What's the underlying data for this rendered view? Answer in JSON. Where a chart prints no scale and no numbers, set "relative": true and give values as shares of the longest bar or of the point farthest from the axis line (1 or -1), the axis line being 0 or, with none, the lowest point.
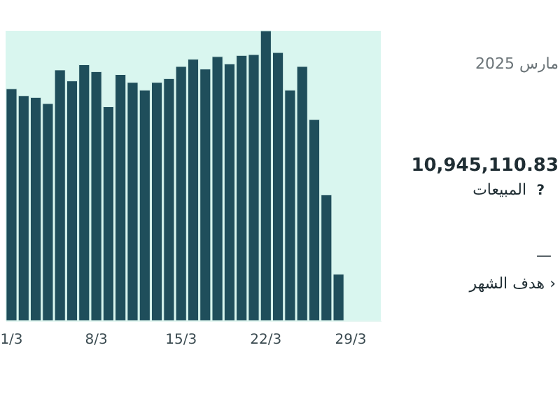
{
  "chart_data": {
    "type": "bar",
    "relative": true,
    "categories": [
      "1/3",
      null,
      null,
      null,
      null,
      null,
      null,
      "8/3",
      null,
      null,
      null,
      null,
      null,
      null,
      "15/3",
      null,
      null,
      null,
      null,
      null,
      null,
      "22/3",
      null,
      null,
      null,
      null,
      null,
      null,
      "29/3",
      null,
      null
    ],
    "values": [
      0.8,
      0.776,
      0.77,
      0.749,
      0.865,
      0.827,
      0.883,
      0.859,
      0.738,
      0.849,
      0.822,
      0.795,
      0.822,
      0.835,
      0.877,
      0.902,
      0.868,
      0.911,
      0.886,
      0.915,
      0.918,
      1,
      0.925,
      0.795,
      0.877,
      0.694,
      0.434,
      0.16,
      null,
      null,
      null
    ],
    "color": "#1f4e5b",
    "annotations": [
      "مارس 2025",
      "10,945,110.83",
      "المبيعات",
      "?",
      "—",
      "هدف الشهر ›"
    ]
  }
}
